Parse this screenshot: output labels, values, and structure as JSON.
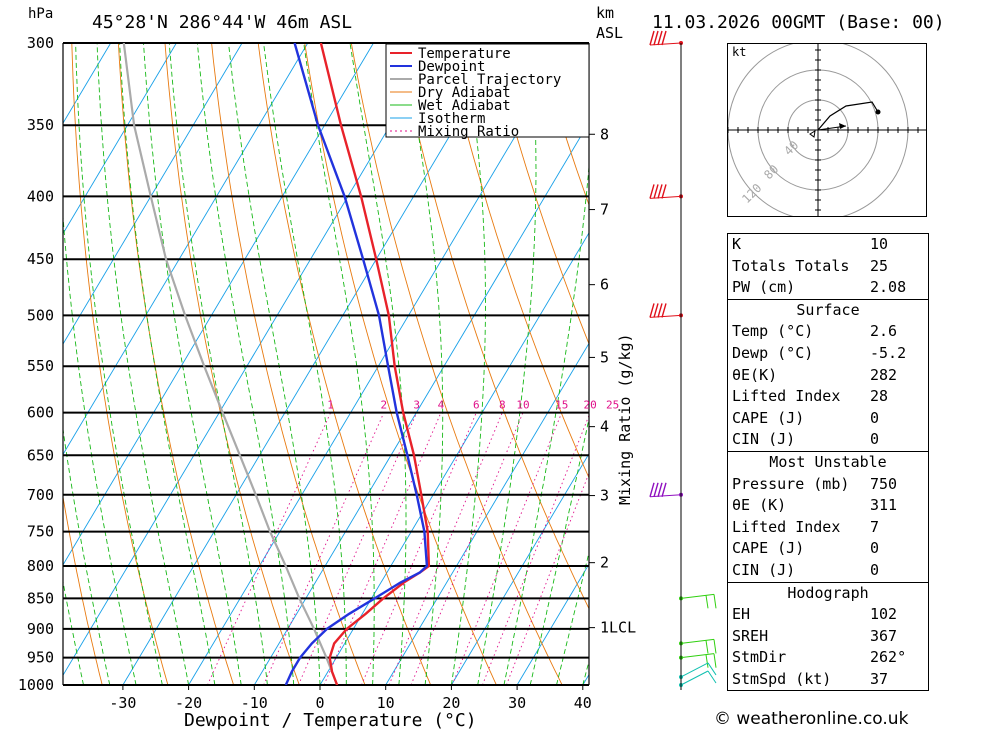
{
  "header": {
    "hpa_label": "hPa",
    "location": "45°28'N 286°44'W 46m ASL",
    "km_label": "km",
    "asl_label": "ASL",
    "datetime": "11.03.2026 00GMT (Base: 00)"
  },
  "legend": [
    "Temperature",
    "Dewpoint",
    "Parcel Trajectory",
    "Dry Adiabat",
    "Wet Adiabat",
    "Isotherm",
    "Mixing Ratio"
  ],
  "colors": {
    "temperature": "#e8222a",
    "dewpoint": "#2233dd",
    "parcel": "#aaaaaa",
    "dry_adiabat": "#e87a10",
    "wet_adiabat": "#17b817",
    "isotherm": "#18a0e8",
    "mixing_ratio": "#e0108a",
    "wind_red": "#e0101a",
    "wind_purple": "#9010c0",
    "wind_green": "#30d010",
    "wind_cyan": "#10c0b0"
  },
  "chart_data": {
    "type": "skew-t",
    "xlabel": "Dewpoint / Temperature (°C)",
    "ylabel": "hPa",
    "pressure_levels": [
      300,
      350,
      400,
      450,
      500,
      550,
      600,
      650,
      700,
      750,
      800,
      850,
      900,
      950,
      1000
    ],
    "temp_ticks": [
      -30,
      -20,
      -10,
      0,
      10,
      20,
      30,
      40
    ],
    "km_ticks": [
      {
        "km": "8",
        "p": 356
      },
      {
        "km": "7",
        "p": 410
      },
      {
        "km": "6",
        "p": 472
      },
      {
        "km": "5",
        "p": 541
      },
      {
        "km": "4",
        "p": 616
      },
      {
        "km": "3",
        "p": 701
      },
      {
        "km": "2",
        "p": 795
      },
      {
        "km": "1LCL",
        "p": 898
      }
    ],
    "mixing_ratio_label": "Mixing Ratio (g/kg)",
    "mixing_ratios": [
      "1",
      "2",
      "3",
      "4",
      "6",
      "8",
      "10",
      "15",
      "20",
      "25"
    ],
    "temperature": {
      "p": [
        1000,
        975,
        950,
        925,
        900,
        875,
        850,
        825,
        810,
        800,
        750,
        700,
        650,
        600,
        550,
        500,
        450,
        400,
        350,
        300
      ],
      "t": [
        2.6,
        0.6,
        -1.0,
        -1.6,
        -1.0,
        0.5,
        1.8,
        3.5,
        5.0,
        5.8,
        2.5,
        -1.8,
        -6.5,
        -12.0,
        -17.5,
        -23.0,
        -30.0,
        -38.0,
        -47.5,
        -58.0
      ]
    },
    "dewpoint": {
      "p": [
        1000,
        975,
        950,
        925,
        900,
        875,
        850,
        825,
        810,
        800,
        750,
        700,
        650,
        600,
        550,
        500,
        450,
        400,
        350,
        300
      ],
      "t": [
        -5.2,
        -5.5,
        -5.5,
        -5.0,
        -4.0,
        -2.0,
        0.5,
        3.0,
        5.0,
        5.5,
        2.0,
        -2.5,
        -7.5,
        -13.0,
        -18.5,
        -24.5,
        -32.0,
        -40.5,
        -51.0,
        -62.0
      ]
    },
    "parcel": {
      "p": [
        1000,
        950,
        900,
        850,
        800,
        750,
        700,
        650,
        600,
        550,
        500,
        450,
        400,
        350,
        300
      ],
      "t": [
        2.6,
        -1.5,
        -6.0,
        -11.0,
        -16.0,
        -21.5,
        -27.0,
        -33.0,
        -39.5,
        -46.5,
        -54.0,
        -62.0,
        -70.0,
        -79.0,
        -88.0
      ]
    },
    "winds": [
      {
        "p": 300,
        "color": "red"
      },
      {
        "p": 400,
        "color": "red"
      },
      {
        "p": 500,
        "color": "red"
      },
      {
        "p": 700,
        "color": "purple"
      },
      {
        "p": 850,
        "color": "green"
      },
      {
        "p": 925,
        "color": "green"
      },
      {
        "p": 950,
        "color": "green"
      },
      {
        "p": 985,
        "color": "cyan"
      },
      {
        "p": 1000,
        "color": "cyan"
      }
    ]
  },
  "hodograph": {
    "unit": "kt",
    "ring_labels": [
      "40",
      "80",
      "120"
    ]
  },
  "indices": [
    {
      "label": "K",
      "value": "10"
    },
    {
      "label": "Totals Totals",
      "value": "25"
    },
    {
      "label": "PW (cm)",
      "value": "2.08"
    }
  ],
  "surface": {
    "title": "Surface",
    "rows": [
      {
        "label": "Temp (°C)",
        "value": "2.6"
      },
      {
        "label": "Dewp (°C)",
        "value": "-5.2"
      },
      {
        "label": "θE(K)",
        "value": "282"
      },
      {
        "label": "Lifted Index",
        "value": "28"
      },
      {
        "label": "CAPE (J)",
        "value": "0"
      },
      {
        "label": "CIN (J)",
        "value": "0"
      }
    ]
  },
  "most_unstable": {
    "title": "Most Unstable",
    "rows": [
      {
        "label": "Pressure (mb)",
        "value": "750"
      },
      {
        "label": "θE (K)",
        "value": "311"
      },
      {
        "label": "Lifted Index",
        "value": "7"
      },
      {
        "label": "CAPE (J)",
        "value": "0"
      },
      {
        "label": "CIN (J)",
        "value": "0"
      }
    ]
  },
  "hodograph_table": {
    "title": "Hodograph",
    "rows": [
      {
        "label": "EH",
        "value": "102"
      },
      {
        "label": "SREH",
        "value": "367"
      },
      {
        "label": "StmDir",
        "value": "262°"
      },
      {
        "label": "StmSpd (kt)",
        "value": "37"
      }
    ]
  },
  "watermark": "© weatheronline.co.uk"
}
